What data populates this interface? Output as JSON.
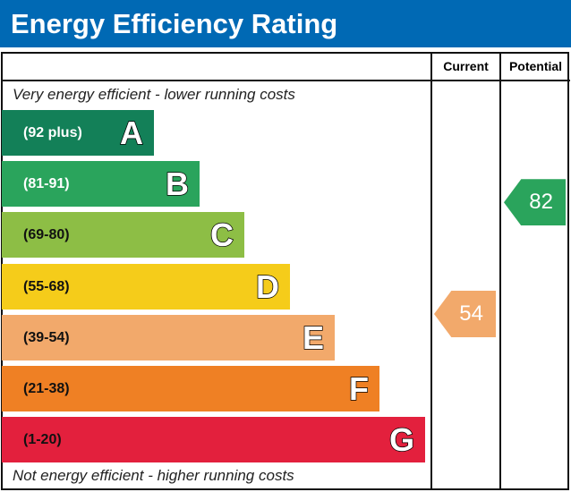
{
  "title": "Energy Efficiency Rating",
  "columns": {
    "current": "Current",
    "potential": "Potential"
  },
  "notes": {
    "top": "Very energy efficient - lower running costs",
    "bottom": "Not energy efficient - higher running costs"
  },
  "chart_data": {
    "type": "bar",
    "bands": [
      {
        "letter": "A",
        "range": "(92 plus)",
        "color": "#138058",
        "text_color": "#ffffff"
      },
      {
        "letter": "B",
        "range": "(81-91)",
        "color": "#2aa45c",
        "text_color": "#ffffff"
      },
      {
        "letter": "C",
        "range": "(69-80)",
        "color": "#8dbe45",
        "text_color": "#111111"
      },
      {
        "letter": "D",
        "range": "(55-68)",
        "color": "#f5cc1a",
        "text_color": "#111111"
      },
      {
        "letter": "E",
        "range": "(39-54)",
        "color": "#f2a96b",
        "text_color": "#111111"
      },
      {
        "letter": "F",
        "range": "(21-38)",
        "color": "#ef8024",
        "text_color": "#111111"
      },
      {
        "letter": "G",
        "range": "(1-20)",
        "color": "#e3203d",
        "text_color": "#111111"
      }
    ],
    "current": {
      "value": "54",
      "band": "E",
      "color": "#f2a96b"
    },
    "potential": {
      "value": "82",
      "band": "B",
      "color": "#2aa45c"
    }
  }
}
